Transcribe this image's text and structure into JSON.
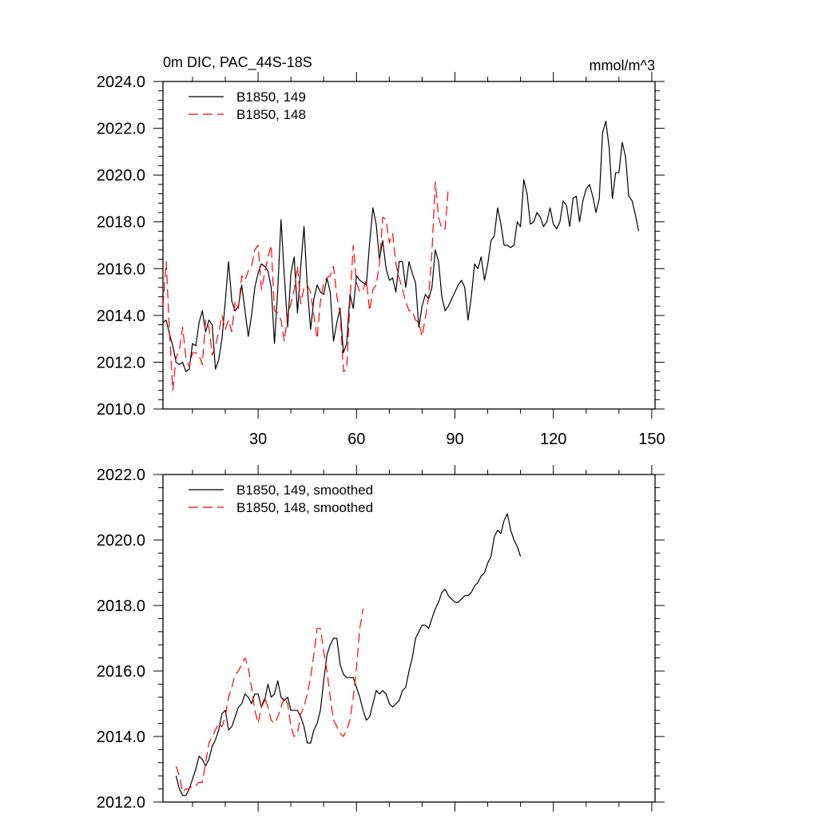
{
  "chart_data": [
    {
      "type": "line",
      "title": "0m DIC, PAC_44S-18S",
      "units": "mmol/m^3",
      "xlim": [
        1,
        151
      ],
      "ylim": [
        2010,
        2024
      ],
      "xticks": [
        30,
        60,
        90,
        120,
        150
      ],
      "yticks": [
        2010,
        2012,
        2014,
        2016,
        2018,
        2020,
        2022,
        2024
      ],
      "ytick_labels": [
        "2010.0",
        "2012.0",
        "2014.0",
        "2016.0",
        "2018.0",
        "2020.0",
        "2022.0",
        "2024.0"
      ],
      "legend_position": "top-left",
      "series": [
        {
          "name": "B1850, 149",
          "color": "#000000",
          "dash": "solid",
          "x_start": 1,
          "values": [
            2013.7,
            2013.8,
            2013.2,
            2012.7,
            2012.0,
            2011.9,
            2012.0,
            2011.6,
            2011.7,
            2012.8,
            2012.7,
            2013.7,
            2014.2,
            2013.3,
            2013.8,
            2013.6,
            2011.7,
            2012.1,
            2013.0,
            2014.6,
            2016.3,
            2014.6,
            2014.2,
            2014.4,
            2015.3,
            2014.2,
            2013.1,
            2014.0,
            2015.2,
            2015.8,
            2016.2,
            2016.1,
            2015.9,
            2015.2,
            2012.8,
            2015.1,
            2018.1,
            2015.7,
            2013.5,
            2015.8,
            2016.5,
            2014.1,
            2016.1,
            2017.8,
            2015.2,
            2013.4,
            2014.7,
            2015.3,
            2015.0,
            2014.9,
            2015.6,
            2015.0,
            2012.9,
            2013.7,
            2014.3,
            2012.4,
            2012.8,
            2014.9,
            2014.3,
            2015.7,
            2015.5,
            2015.4,
            2015.3,
            2017.1,
            2018.6,
            2017.9,
            2016.4,
            2017.2,
            2016.0,
            2015.5,
            2015.6,
            2015.0,
            2016.3,
            2016.3,
            2015.2,
            2016.3,
            2015.8,
            2015.4,
            2013.5,
            2014.4,
            2014.9,
            2014.7,
            2015.2,
            2016.8,
            2016.3,
            2014.8,
            2014.2,
            2014.4,
            2014.7,
            2015.0,
            2015.3,
            2015.5,
            2015.2,
            2013.8,
            2014.8,
            2016.2,
            2016.0,
            2016.5,
            2015.5,
            2016.2,
            2017.2,
            2017.4,
            2018.6,
            2017.9,
            2017.0,
            2017.0,
            2016.9,
            2017.0,
            2018.0,
            2017.8,
            2019.8,
            2019.2,
            2017.9,
            2018.0,
            2018.4,
            2018.2,
            2017.8,
            2018.0,
            2018.6,
            2017.9,
            2017.7,
            2018.0,
            2018.9,
            2018.7,
            2017.8,
            2019.0,
            2019.1,
            2018.0,
            2018.9,
            2019.4,
            2019.6,
            2019.1,
            2018.4,
            2019.0,
            2021.8,
            2022.3,
            2021.2,
            2019.0,
            2020.1,
            2020.1,
            2021.4,
            2020.8,
            2019.1,
            2018.9,
            2018.3,
            2017.6
          ]
        },
        {
          "name": "B1850, 148",
          "color": "#ff0000",
          "dash": "dashed",
          "x_start": 1,
          "values": [
            2014.4,
            2016.3,
            2013.3,
            2010.8,
            2012.2,
            2012.5,
            2013.5,
            2012.2,
            2011.8,
            2012.4,
            2012.4,
            2012.3,
            2011.9,
            2013.8,
            2013.5,
            2012.3,
            2012.7,
            2013.3,
            2014.0,
            2013.4,
            2013.8,
            2013.3,
            2014.6,
            2014.3,
            2015.7,
            2015.5,
            2015.9,
            2016.1,
            2016.8,
            2017.0,
            2015.1,
            2015.8,
            2016.5,
            2017.0,
            2014.2,
            2014.1,
            2013.8,
            2012.9,
            2014.0,
            2014.5,
            2015.1,
            2016.1,
            2014.5,
            2015.2,
            2015.3,
            2015.0,
            2014.0,
            2013.0,
            2014.6,
            2015.4,
            2015.6,
            2015.7,
            2016.1,
            2014.8,
            2014.1,
            2011.6,
            2011.7,
            2014.6,
            2017.0,
            2015.4,
            2015.0,
            2015.1,
            2015.5,
            2014.2,
            2015.1,
            2015.3,
            2016.2,
            2018.2,
            2018.1,
            2017.1,
            2017.5,
            2016.2,
            2015.6,
            2015.1,
            2014.6,
            2014.2,
            2014.2,
            2013.8,
            2013.7,
            2013.1,
            2013.9,
            2014.8,
            2016.7,
            2019.7,
            2018.2,
            2017.7,
            2017.7,
            2019.5
          ]
        }
      ]
    },
    {
      "type": "line",
      "title": "",
      "xlim": [
        1,
        151
      ],
      "ylim": [
        2012,
        2022
      ],
      "xticks": [
        30,
        60,
        90,
        120,
        150
      ],
      "yticks": [
        2012,
        2014,
        2016,
        2018,
        2020,
        2022
      ],
      "ytick_labels": [
        "2012.0",
        "2014.0",
        "2016.0",
        "2018.0",
        "2020.0",
        "2022.0"
      ],
      "legend_position": "top-left",
      "series": [
        {
          "name": "B1850, 149, smoothed",
          "color": "#000000",
          "dash": "solid",
          "x_start": 5,
          "values": [
            2012.8,
            2012.4,
            2012.2,
            2012.2,
            2012.4,
            2012.7,
            2013.0,
            2013.4,
            2013.3,
            2013.1,
            2013.3,
            2013.7,
            2013.9,
            2014.2,
            2014.7,
            2014.8,
            2014.2,
            2014.3,
            2014.6,
            2014.9,
            2015.0,
            2015.3,
            2015.2,
            2015.0,
            2015.3,
            2015.3,
            2014.9,
            2015.1,
            2015.6,
            2015.2,
            2015.3,
            2015.7,
            2015.2,
            2015.1,
            2015.2,
            2014.8,
            2014.8,
            2014.8,
            2014.6,
            2014.3,
            2013.8,
            2013.8,
            2014.2,
            2014.4,
            2014.8,
            2015.7,
            2016.5,
            2016.8,
            2017.0,
            2017.0,
            2016.2,
            2015.9,
            2015.8,
            2015.8,
            2015.8,
            2015.5,
            2015.2,
            2014.8,
            2014.5,
            2014.6,
            2015.0,
            2015.4,
            2015.3,
            2015.4,
            2015.3,
            2015.0,
            2014.9,
            2015.0,
            2015.1,
            2015.4,
            2015.5,
            2016.0,
            2016.4,
            2017.0,
            2017.2,
            2017.4,
            2017.4,
            2017.3,
            2017.6,
            2017.9,
            2018.1,
            2018.4,
            2018.5,
            2018.3,
            2018.2,
            2018.1,
            2018.1,
            2018.2,
            2018.3,
            2018.3,
            2018.4,
            2018.6,
            2018.7,
            2018.9,
            2019.0,
            2019.3,
            2019.5,
            2020.1,
            2020.3,
            2020.2,
            2020.6,
            2020.8,
            2020.3,
            2020.0,
            2019.8,
            2019.5
          ]
        },
        {
          "name": "B1850, 148, smoothed",
          "color": "#ff0000",
          "dash": "dashed",
          "x_start": 5,
          "values": [
            2013.1,
            2012.8,
            2012.3,
            2012.4,
            2012.4,
            2012.5,
            2012.5,
            2012.6,
            2012.6,
            2013.2,
            2013.8,
            2014.0,
            2014.2,
            2014.4,
            2014.3,
            2014.6,
            2015.2,
            2015.5,
            2015.9,
            2016.0,
            2016.2,
            2016.4,
            2016.1,
            2015.5,
            2014.8,
            2014.4,
            2014.9,
            2015.2,
            2014.9,
            2014.5,
            2014.4,
            2014.6,
            2014.9,
            2015.2,
            2015.0,
            2014.3,
            2014.0,
            2014.1,
            2014.7,
            2014.9,
            2015.3,
            2015.8,
            2016.5,
            2017.3,
            2017.3,
            2016.6,
            2016.0,
            2015.2,
            2014.5,
            2014.3,
            2014.1,
            2014.0,
            2014.2,
            2014.5,
            2015.2,
            2016.1,
            2017.3,
            2017.9
          ]
        }
      ]
    }
  ]
}
